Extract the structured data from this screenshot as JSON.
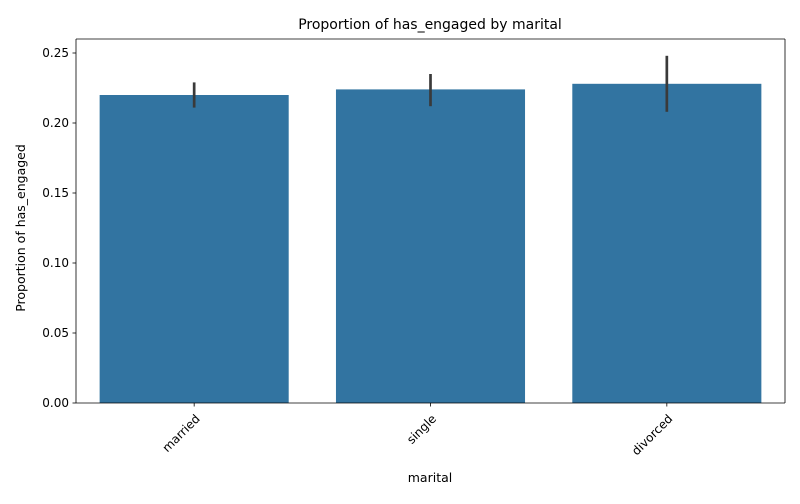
{
  "chart_data": {
    "type": "bar",
    "title": "Proportion of has_engaged by marital",
    "xlabel": "marital",
    "ylabel": "Proportion of has_engaged",
    "categories": [
      "married",
      "single",
      "divorced"
    ],
    "values": [
      0.22,
      0.224,
      0.228
    ],
    "error_bars": [
      {
        "low": 0.211,
        "high": 0.229
      },
      {
        "low": 0.212,
        "high": 0.235
      },
      {
        "low": 0.208,
        "high": 0.248
      }
    ],
    "ylim": [
      0,
      0.26
    ],
    "yticks": [
      0.0,
      0.05,
      0.1,
      0.15,
      0.2,
      0.25
    ],
    "ytick_labels": [
      "0.00",
      "0.05",
      "0.10",
      "0.15",
      "0.20",
      "0.25"
    ],
    "xtick_rotation": 45,
    "grid": false,
    "legend": "none",
    "colors": {
      "bar": "#3274a1",
      "error_bar": "#3a3a3a",
      "axis": "#000000"
    }
  }
}
